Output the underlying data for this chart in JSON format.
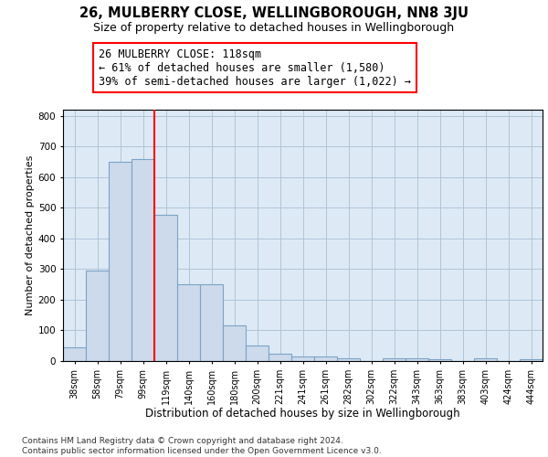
{
  "title_line1": "26, MULBERRY CLOSE, WELLINGBOROUGH, NN8 3JU",
  "title_line2": "Size of property relative to detached houses in Wellingborough",
  "xlabel": "Distribution of detached houses by size in Wellingborough",
  "ylabel": "Number of detached properties",
  "footnote": "Contains HM Land Registry data © Crown copyright and database right 2024.\nContains public sector information licensed under the Open Government Licence v3.0.",
  "bar_labels": [
    "38sqm",
    "58sqm",
    "79sqm",
    "99sqm",
    "119sqm",
    "140sqm",
    "160sqm",
    "180sqm",
    "200sqm",
    "221sqm",
    "241sqm",
    "261sqm",
    "282sqm",
    "302sqm",
    "322sqm",
    "343sqm",
    "363sqm",
    "383sqm",
    "403sqm",
    "424sqm",
    "444sqm"
  ],
  "bar_values": [
    45,
    295,
    650,
    660,
    478,
    250,
    250,
    115,
    50,
    25,
    15,
    15,
    8,
    0,
    8,
    8,
    5,
    0,
    8,
    0,
    5
  ],
  "bar_color": "#ccdaeb",
  "bar_edgecolor": "#7ba3c8",
  "vline_color": "red",
  "vline_position": 3.5,
  "annotation_text": "26 MULBERRY CLOSE: 118sqm\n← 61% of detached houses are smaller (1,580)\n39% of semi-detached houses are larger (1,022) →",
  "ylim": [
    0,
    820
  ],
  "yticks": [
    0,
    100,
    200,
    300,
    400,
    500,
    600,
    700,
    800
  ],
  "grid_color": "#b0c4d8",
  "background_color": "#ddeaf5",
  "annotation_box_edgecolor": "red",
  "title1_fontsize": 10.5,
  "title2_fontsize": 9,
  "xlabel_fontsize": 8.5,
  "ylabel_fontsize": 8,
  "tick_fontsize": 7,
  "annotation_fontsize": 8.5,
  "footnote_fontsize": 6.5
}
